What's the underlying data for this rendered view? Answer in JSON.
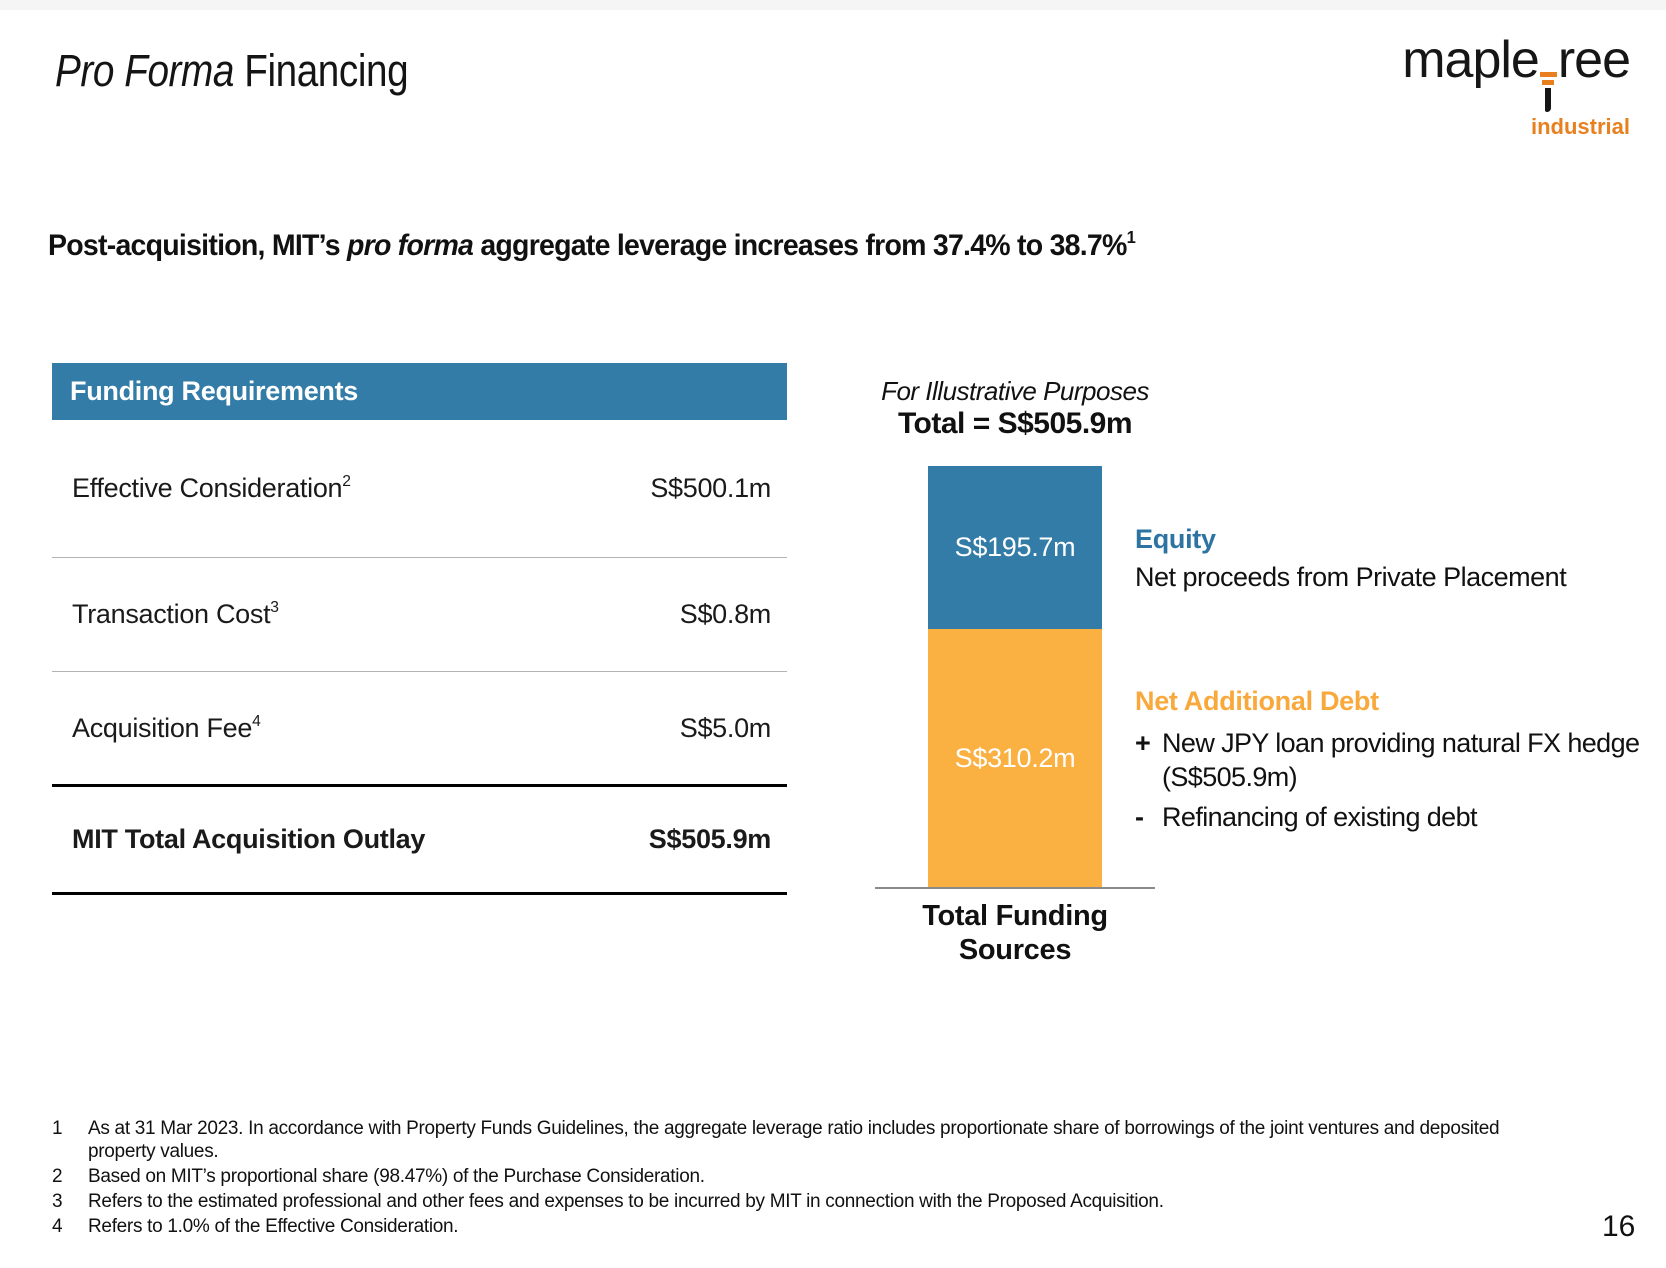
{
  "page": {
    "number": "16"
  },
  "title": {
    "italic": "Pro Forma",
    "regular": " Financing"
  },
  "logo": {
    "text_before_t": "maple",
    "text_after_t": "ree",
    "sub": "industrial"
  },
  "headline": {
    "pre": "Post-acquisition, MIT’s ",
    "italic": "pro forma",
    "post": " aggregate leverage increases from 37.4% to 38.7%",
    "sup": "1"
  },
  "funding_table": {
    "header": "Funding Requirements",
    "rows": [
      {
        "label": "Effective Consideration",
        "sup": "2",
        "value": "S$500.1m"
      },
      {
        "label": "Transaction Cost",
        "sup": "3",
        "value": "S$0.8m"
      },
      {
        "label": "Acquisition Fee",
        "sup": "4",
        "value": "S$5.0m"
      }
    ],
    "total": {
      "label": "MIT Total Acquisition Outlay",
      "value": "S$505.9m"
    }
  },
  "chart": {
    "caption_illustrative": "For Illustrative Purposes",
    "caption_total": "Total = S$505.9m",
    "x_label_line1": "Total Funding",
    "x_label_line2": "Sources"
  },
  "chart_data": {
    "type": "bar",
    "stacked": true,
    "categories": [
      "Total Funding Sources"
    ],
    "series": [
      {
        "name": "Equity",
        "values": [
          195.7
        ],
        "color": "#337CA8",
        "data_label": "S$195.7m"
      },
      {
        "name": "Net Additional Debt",
        "values": [
          310.2
        ],
        "color": "#FBB042",
        "data_label": "S$310.2m"
      }
    ],
    "total": 505.9,
    "unit": "S$m",
    "title": "Total = S$505.9m",
    "subtitle": "For Illustrative Purposes",
    "xlabel": "Total Funding Sources",
    "ylabel": "",
    "legend_position": "right",
    "grid": false
  },
  "legend": {
    "equity": {
      "title": "Equity",
      "desc": "Net proceeds from Private Placement"
    },
    "debt": {
      "title": "Net Additional Debt",
      "items": [
        {
          "bullet": "+",
          "lines": [
            "New JPY loan providing natural FX hedge",
            "(S$505.9m)"
          ]
        },
        {
          "bullet": "-",
          "lines": [
            "Refinancing of existing debt",
            ""
          ]
        }
      ]
    }
  },
  "footnotes": [
    {
      "num": "1",
      "text": "As at 31 Mar 2023. In accordance with Property Funds Guidelines, the aggregate leverage ratio includes proportionate share of borrowings of the joint ventures and deposited property values."
    },
    {
      "num": "2",
      "text": "Based on MIT’s proportional share (98.47%) of the Purchase Consideration."
    },
    {
      "num": "3",
      "text": "Refers to the estimated professional and other fees and expenses to be incurred by MIT in connection with the Proposed Acquisition."
    },
    {
      "num": "4",
      "text": "Refers to 1.0% of the Effective Consideration."
    }
  ],
  "colors": {
    "brand_blue": "#337CA8",
    "brand_orange": "#FBB042",
    "equity_text_blue": "#2E74A3",
    "debt_text_orange": "#F9A93B",
    "logo_orange": "#E8801F",
    "divider_gray": "#b3b3b3",
    "axis_gray": "#8a8a8a",
    "top_strip_gray": "#f5f5f5"
  }
}
